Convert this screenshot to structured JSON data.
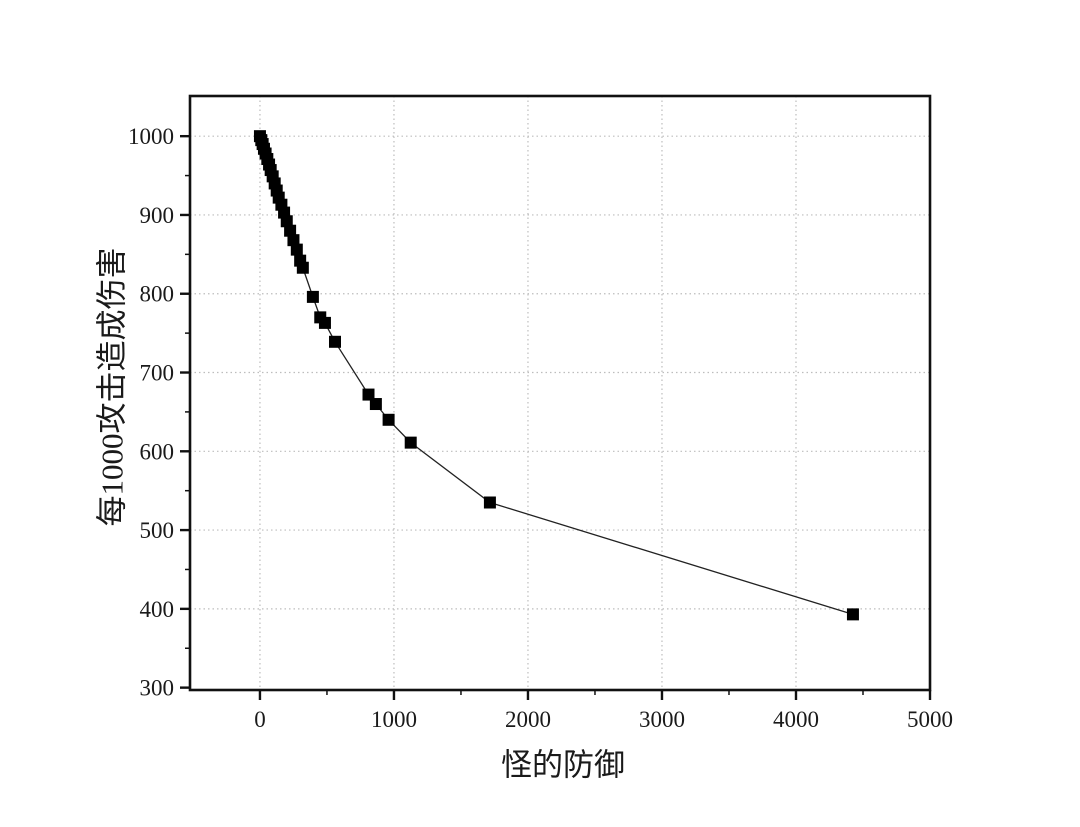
{
  "page": {
    "background": "#ffffff"
  },
  "chart_data": {
    "type": "scatter",
    "title": "",
    "xlabel": "怪的防御",
    "ylabel": "每1000攻击造成伤害",
    "x_ticks": [
      0,
      1000,
      2000,
      3000,
      4000,
      5000
    ],
    "y_ticks": [
      300,
      400,
      500,
      600,
      700,
      800,
      900,
      1000
    ],
    "x_minor_ticks": [
      500,
      1500,
      2500,
      3500,
      4500
    ],
    "y_minor_ticks": [
      350,
      450,
      550,
      650,
      750,
      850,
      950
    ],
    "xlim": [
      -522,
      5000
    ],
    "ylim": [
      297,
      1051
    ],
    "grid": {
      "show": true,
      "style": "dotted",
      "color": "#bdbdbd",
      "on_major_only": true
    },
    "legend": {
      "show": false
    },
    "marker": {
      "shape": "filled-square",
      "size": 12,
      "color": "#000000"
    },
    "line": {
      "color": "#222222",
      "width": 1.3
    },
    "axis_color": "#111111",
    "series": [
      {
        "name": "每1000攻击造成伤害",
        "points": [
          [
            0,
            1000
          ],
          [
            10,
            995
          ],
          [
            20,
            990
          ],
          [
            30,
            984
          ],
          [
            42,
            978
          ],
          [
            55,
            971
          ],
          [
            68,
            964
          ],
          [
            80,
            957
          ],
          [
            95,
            949
          ],
          [
            110,
            940
          ],
          [
            125,
            931
          ],
          [
            140,
            922
          ],
          [
            160,
            913
          ],
          [
            180,
            903
          ],
          [
            200,
            892
          ],
          [
            225,
            880
          ],
          [
            250,
            868
          ],
          [
            275,
            856
          ],
          [
            300,
            842
          ],
          [
            320,
            833
          ],
          [
            395,
            796
          ],
          [
            450,
            770
          ],
          [
            485,
            763
          ],
          [
            560,
            739
          ],
          [
            810,
            672
          ],
          [
            865,
            660
          ],
          [
            960,
            640
          ],
          [
            1125,
            611
          ],
          [
            1716,
            535
          ],
          [
            4425,
            393
          ]
        ]
      }
    ]
  }
}
